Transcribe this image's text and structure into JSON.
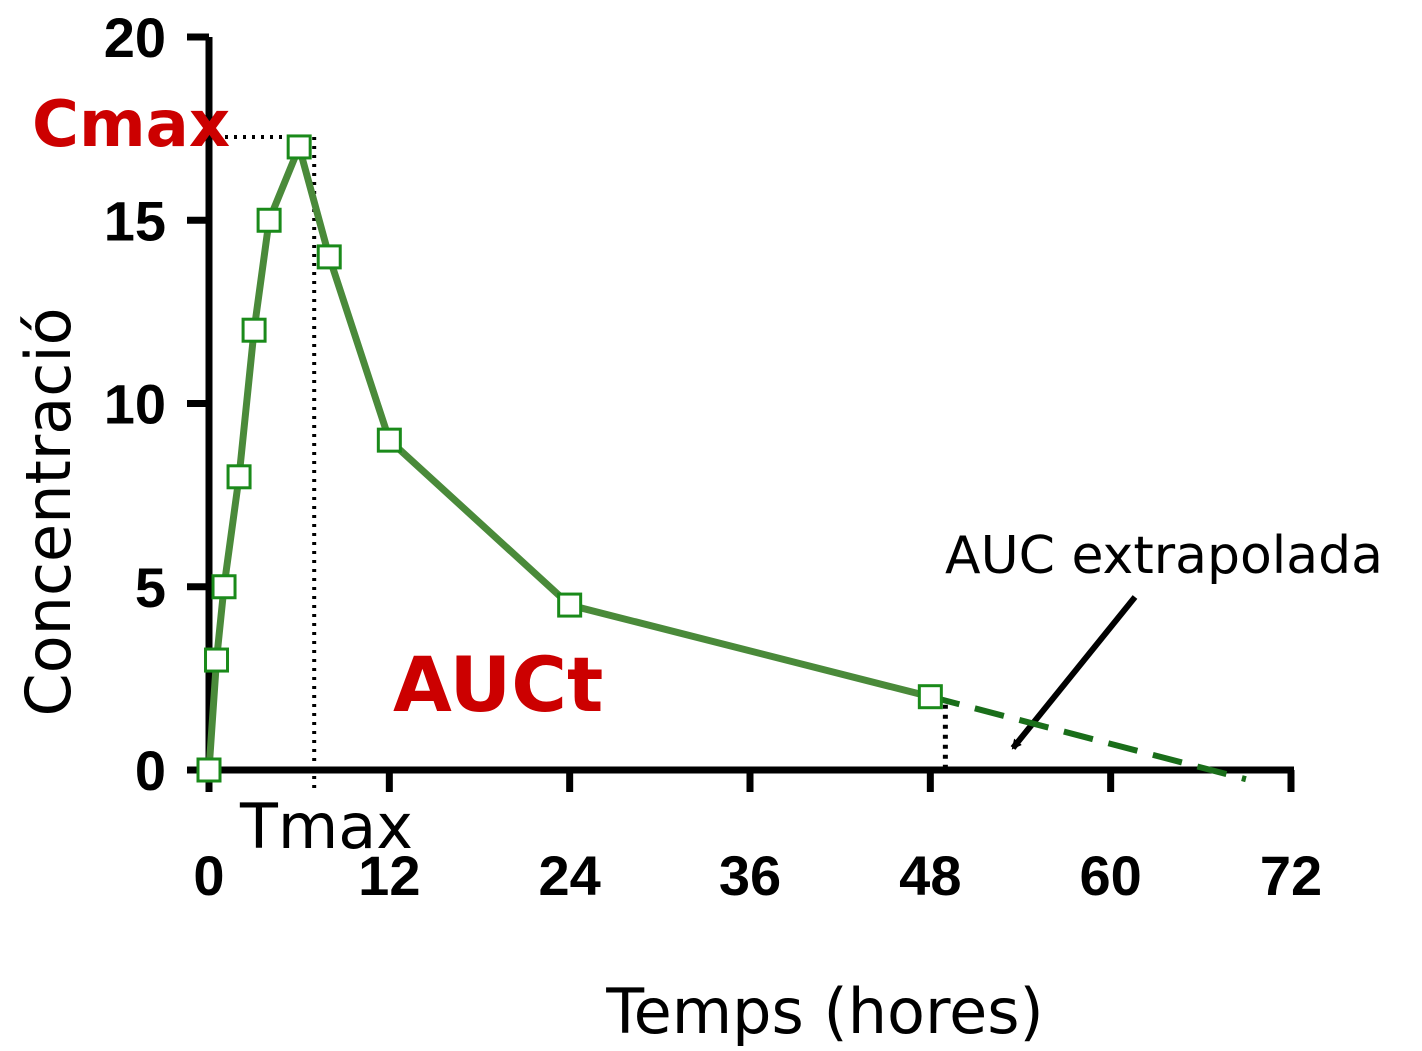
{
  "chart_data": {
    "type": "line",
    "title": "",
    "xlabel": "Temps (hores)",
    "ylabel": "Concentració",
    "xlim": [
      0,
      72
    ],
    "ylim": [
      0,
      20
    ],
    "x_ticks": [
      0,
      12,
      24,
      36,
      48,
      60,
      72
    ],
    "y_ticks": [
      0,
      5,
      10,
      15,
      20
    ],
    "grid": false,
    "legend": "none",
    "series": [
      {
        "color": "#4a8a3a",
        "marker_color": "#1a8a1a",
        "marker": "open-square",
        "x": [
          0,
          0.5,
          1,
          2,
          3,
          4,
          6,
          8,
          12,
          24,
          48
        ],
        "y": [
          0,
          3,
          5,
          8,
          12,
          15,
          17,
          14,
          9,
          4.5,
          2
        ]
      }
    ],
    "extrapolation": {
      "color": "#1a6e1a",
      "style": "dashed",
      "x": [
        48,
        69
      ],
      "y": [
        2,
        -0.25
      ]
    },
    "annotations": {
      "cmax": {
        "label": "Cmax",
        "x": 6,
        "y": 17
      },
      "tmax": {
        "label": "Tmax",
        "x": 7
      },
      "auct": {
        "label": "AUCt"
      },
      "auc_extrapolada": {
        "label": "AUC extrapolada",
        "arrow_to": [
          53.5,
          0.6
        ]
      },
      "t_last": {
        "x": 49
      }
    }
  }
}
